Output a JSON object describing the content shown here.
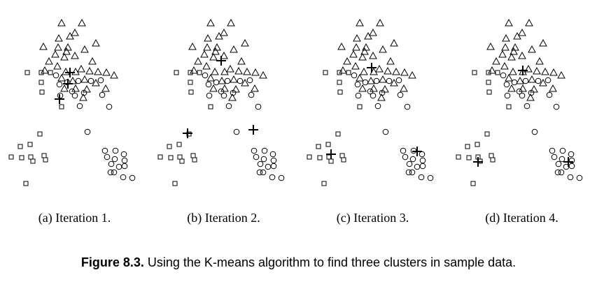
{
  "panels": [
    {
      "caption": "(a) Iteration 1.",
      "centroids": 3
    },
    {
      "caption": "(b) Iteration 2.",
      "centroids": 3
    },
    {
      "caption": "(c) Iteration 3.",
      "centroids": 3
    },
    {
      "caption": "(d) Iteration 4.",
      "centroids": 3
    }
  ],
  "figure_caption": {
    "label": "Figure 8.3.",
    "text": "Using the K-means algorithm to find three clusters in sample data."
  },
  "marker_shapes": [
    "triangle",
    "circle",
    "square"
  ],
  "centroid_shape": "plus"
}
